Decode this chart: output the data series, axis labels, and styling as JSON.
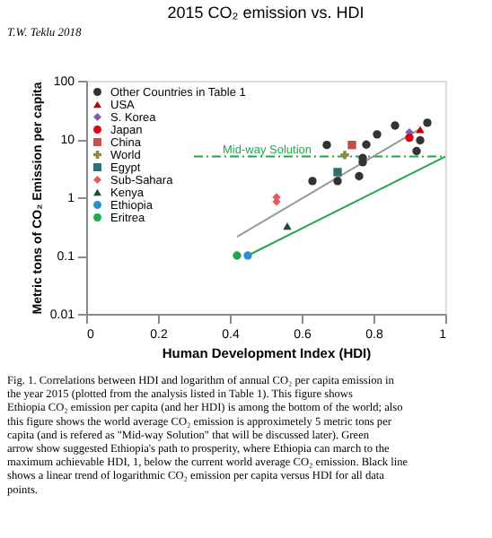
{
  "chart_data": {
    "type": "scatter",
    "title": "2015 CO₂ emission vs. HDI",
    "xlabel": "Human Development Index (HDI)",
    "ylabel": "Metric tons of CO₂ Emission per capita",
    "annotations": [
      "T.W. Teklu 2018",
      "Fig. 1. Correlations between HDI and logarithm of annual CO₂ per capita emission in the year 2015 (plotted from the analysis listed in Table 1). This figure shows Ethiopia CO₂ emission per capita (and her HDI) is among the bottom of the world; also this figure shows the world average CO₂ emission is approximetely 5 metric tons per capita (and is refered as \"Mid-way Solution\" that will be discussed later). Green arrow show suggested Ethiopia's path to prosperity, where Ethiopia can march to the maximum achievable HDI, 1, below the current world average CO₂ emission. Black line shows a linear trend of logarithmic CO₂ emission per capita versus HDI for all data points."
    ],
    "log": "y",
    "xlim": [
      0,
      1
    ],
    "xticks": [
      0,
      0.2,
      0.4,
      0.6,
      0.8,
      1
    ],
    "ylim": [
      0.01,
      100
    ],
    "yticks": [
      0.01,
      0.1,
      1,
      10,
      100
    ],
    "grid": false,
    "legend": "top left",
    "ref_lines": [
      {
        "axis": "y",
        "value": 5,
        "label": "Mid-way Solution",
        "color": "#21a84a",
        "line_style": "dashed"
      }
    ],
    "series": [
      {
        "name": "Other Countries in Table 1",
        "color": "#333333",
        "marker": "circle",
        "x": [
          0.67,
          0.78,
          0.81,
          0.86,
          0.95,
          0.93,
          0.92,
          0.63,
          0.7,
          0.76,
          0.77,
          0.77
        ],
        "values": [
          7.9,
          8,
          12,
          17,
          19,
          9.5,
          6.2,
          1.9,
          1.9,
          2.3,
          4,
          4.7
        ]
      },
      {
        "name": "USA",
        "color": "#c00000",
        "marker": "triangle",
        "x": [
          0.93
        ],
        "values": [
          14.5
        ]
      },
      {
        "name": "S. Korea",
        "color": "#7f5fa8",
        "marker": "diamond",
        "x": [
          0.9
        ],
        "values": [
          13
        ]
      },
      {
        "name": "Japan",
        "color": "#e0001a",
        "marker": "circle",
        "x": [
          0.9
        ],
        "values": [
          10.5
        ]
      },
      {
        "name": "China",
        "color": "#c0504d",
        "marker": "square",
        "x": [
          0.74
        ],
        "values": [
          7.9
        ]
      },
      {
        "name": "World",
        "color": "#8f8a40",
        "marker": "cross",
        "x": [
          0.72
        ],
        "values": [
          5.3
        ]
      },
      {
        "name": "Egypt",
        "color": "#2f6f6f",
        "marker": "square",
        "x": [
          0.7
        ],
        "values": [
          2.7
        ]
      },
      {
        "name": "Sub-Sahara",
        "color": "#e05a6a",
        "marker": "diamond",
        "x": [
          0.53,
          0.53
        ],
        "values": [
          0.84,
          1.0
        ]
      },
      {
        "name": "Kenya",
        "color": "#1e4d2b",
        "marker": "triangle",
        "x": [
          0.56
        ],
        "values": [
          0.32
        ]
      },
      {
        "name": "Ethiopia",
        "color": "#2e8fd0",
        "marker": "circle",
        "x": [
          0.45
        ],
        "values": [
          0.1
        ]
      },
      {
        "name": "Eritrea",
        "color": "#21a84a",
        "marker": "circle",
        "x": [
          0.42
        ],
        "values": [
          0.1
        ]
      },
      {
        "type": "line",
        "color": "#999999",
        "x": [
          0.42,
          0.93
        ],
        "values": [
          0.21,
          15
        ]
      },
      {
        "type": "line",
        "color": "#21a84a",
        "x": [
          0.45,
          1.0
        ],
        "values": [
          0.1,
          5
        ]
      }
    ]
  }
}
